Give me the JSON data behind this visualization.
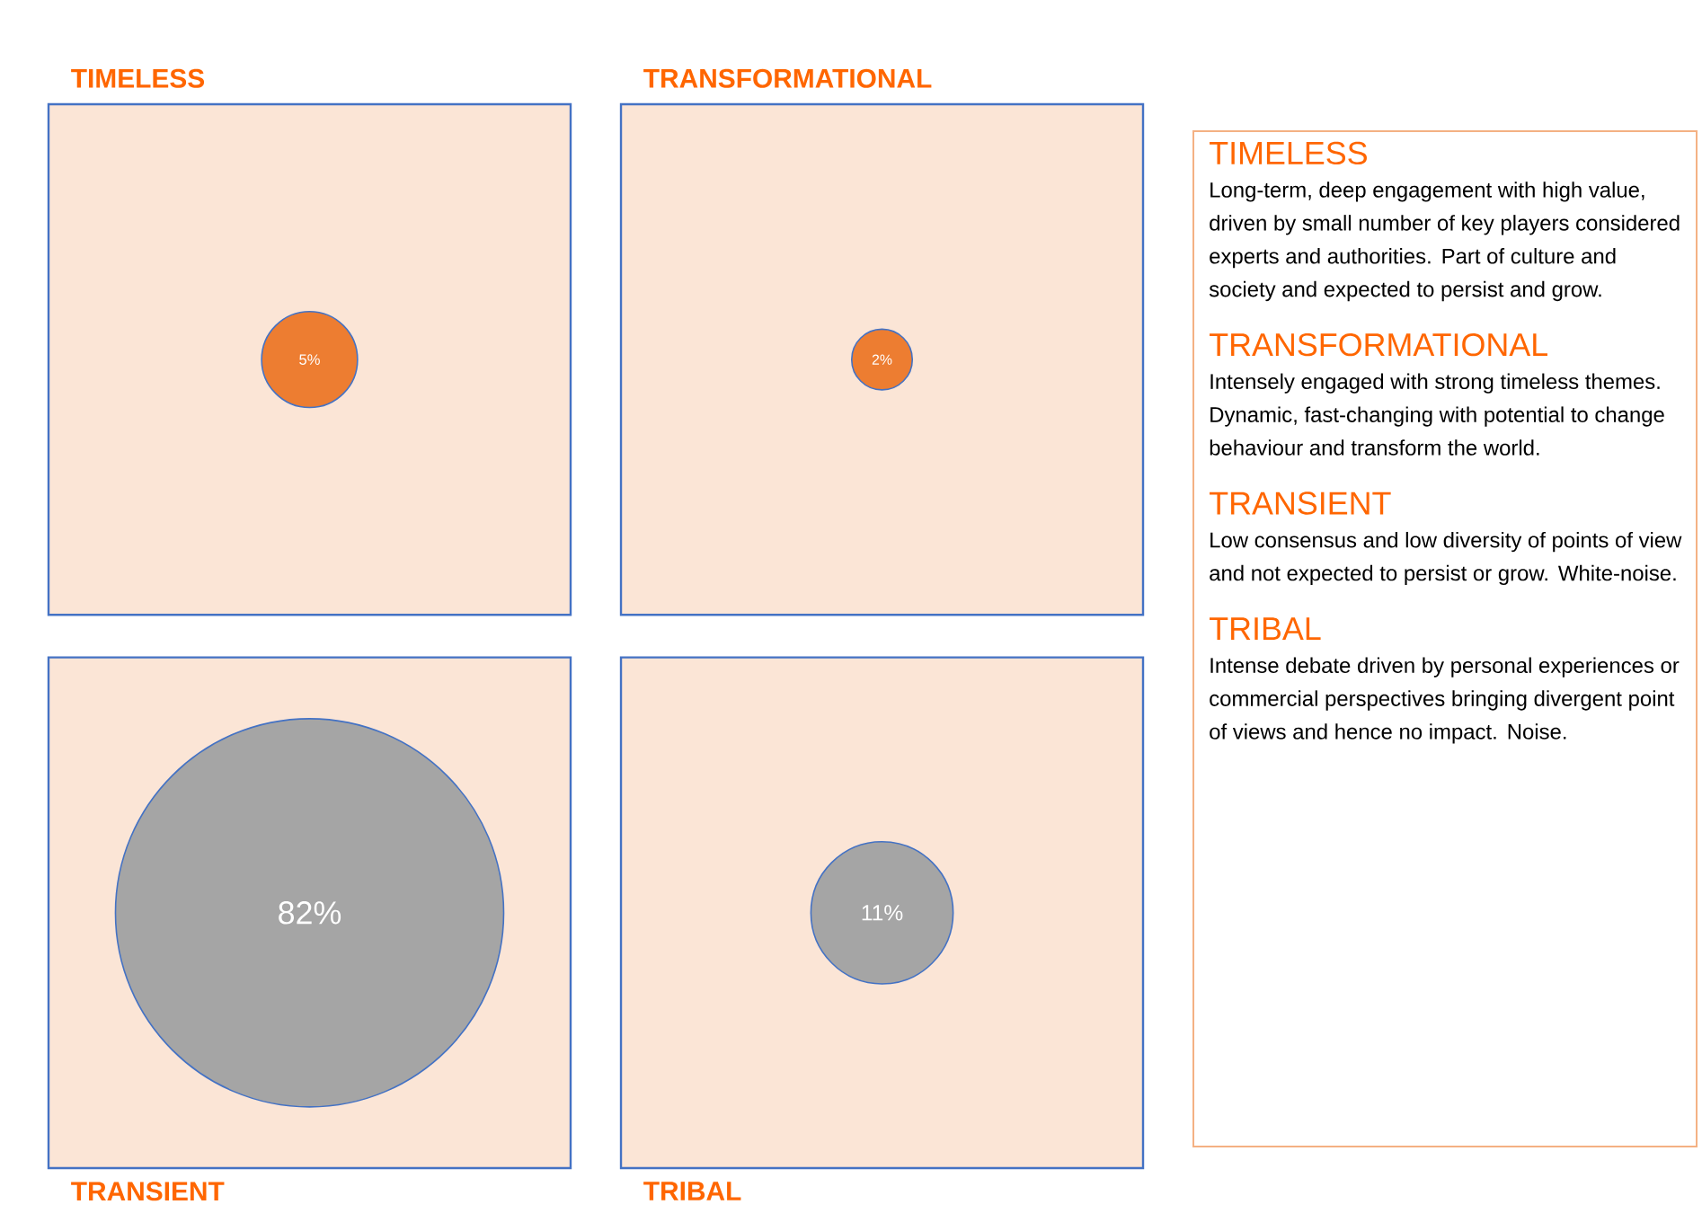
{
  "chart_data": [
    {
      "type": "other",
      "categories": [
        "TIMELESS",
        "TRANSFORMATIONAL",
        "TRANSIENT",
        "TRIBAL"
      ],
      "values": [
        5,
        2,
        82,
        11
      ],
      "value_labels": [
        "5%",
        "2%",
        "82%",
        "11%"
      ],
      "colors": [
        "#ed7d31",
        "#ed7d31",
        "#a5a5a5",
        "#a5a5a5"
      ]
    },
    {
      "type": "other",
      "annotations": [
        "TIMELESS",
        "Long-term, deep engagement with high value, driven by small number of key players considered experts and authorities. Part of culture and society and expected to persist and grow.",
        "TRANSFORMATIONAL",
        "Intensely engaged with strong timeless themes. Dynamic, fast-changing with potential to change behaviour and transform the world.",
        "TRANSIENT",
        "Low consensus and low diversity of points of view and not expected to persist or grow. White-noise.",
        "TRIBAL",
        "Intense debate driven by personal experiences or commercial perspectives bringing divergent point of views and hence no impact. Noise."
      ]
    }
  ]
}
